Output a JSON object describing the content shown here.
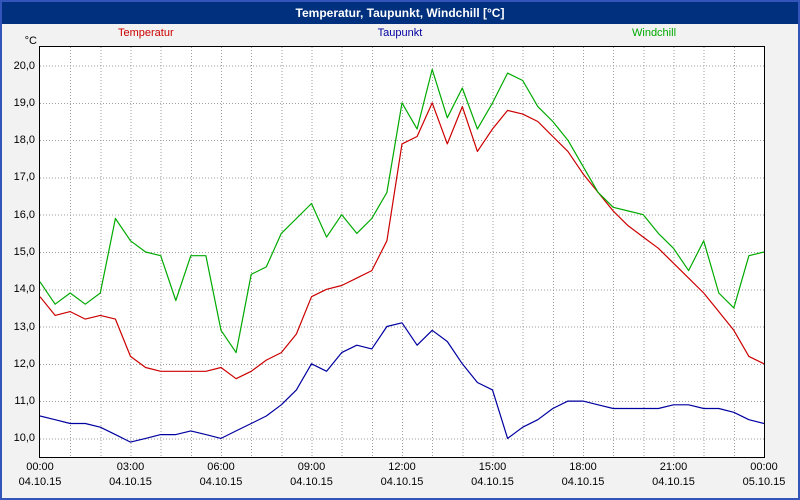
{
  "window": {
    "title": "Temperatur, Taupunkt, Windchill [°C]"
  },
  "chart_data": {
    "type": "line",
    "title": "Temperatur, Taupunkt, Windchill [°C]",
    "xlabel": "",
    "ylabel": "°C",
    "ylim": [
      9.5,
      20.5
    ],
    "grid": "dotted, vertical every hour, horizontal every 1.0 °C",
    "legend_position": "top",
    "x_hours": [
      0,
      0.5,
      1,
      1.5,
      2,
      2.5,
      3,
      3.5,
      4,
      4.5,
      5,
      5.5,
      6,
      6.5,
      7,
      7.5,
      8,
      8.5,
      9,
      9.5,
      10,
      10.5,
      11,
      11.5,
      12,
      12.5,
      13,
      13.5,
      14,
      14.5,
      15,
      15.5,
      16,
      16.5,
      17,
      17.5,
      18,
      18.5,
      19,
      19.5,
      20,
      20.5,
      21,
      21.5,
      22,
      22.5,
      23,
      23.5,
      24
    ],
    "series": [
      {
        "name": "Temperatur",
        "color": "#cc0000",
        "values": [
          13.8,
          13.3,
          13.4,
          13.2,
          13.3,
          13.2,
          12.2,
          11.9,
          11.8,
          11.8,
          11.8,
          11.8,
          11.9,
          11.6,
          11.8,
          12.1,
          12.3,
          12.8,
          13.8,
          14.0,
          14.1,
          14.3,
          14.5,
          15.3,
          17.9,
          18.1,
          19.0,
          17.9,
          18.9,
          17.7,
          18.3,
          18.8,
          18.7,
          18.5,
          18.1,
          17.7,
          17.1,
          16.6,
          16.1,
          15.7,
          15.4,
          15.1,
          14.7,
          14.3,
          13.9,
          13.4,
          12.9,
          12.2,
          12.0
        ]
      },
      {
        "name": "Taupunkt",
        "color": "#0000a0",
        "values": [
          10.6,
          10.5,
          10.4,
          10.4,
          10.3,
          10.1,
          9.9,
          10.0,
          10.1,
          10.1,
          10.2,
          10.1,
          10.0,
          10.2,
          10.4,
          10.6,
          10.9,
          11.3,
          12.0,
          11.8,
          12.3,
          12.5,
          12.4,
          13.0,
          13.1,
          12.5,
          12.9,
          12.6,
          12.0,
          11.5,
          11.3,
          10.0,
          10.3,
          10.5,
          10.8,
          11.0,
          11.0,
          10.9,
          10.8,
          10.8,
          10.8,
          10.8,
          10.9,
          10.9,
          10.8,
          10.8,
          10.7,
          10.5,
          10.4
        ]
      },
      {
        "name": "Windchill",
        "color": "#00aa00",
        "values": [
          14.2,
          13.6,
          13.9,
          13.6,
          13.9,
          15.9,
          15.3,
          15.0,
          14.9,
          13.7,
          14.9,
          14.9,
          12.9,
          12.3,
          14.4,
          14.6,
          15.5,
          15.9,
          16.3,
          15.4,
          16.0,
          15.5,
          15.9,
          16.6,
          19.0,
          18.3,
          19.9,
          18.6,
          19.4,
          18.3,
          19.0,
          19.8,
          19.6,
          18.9,
          18.5,
          18.0,
          17.3,
          16.6,
          16.2,
          16.1,
          16.0,
          15.5,
          15.1,
          14.5,
          15.3,
          13.9,
          13.5,
          14.9,
          15.0
        ]
      }
    ],
    "yticks": [
      {
        "v": 20,
        "label": "20,0"
      },
      {
        "v": 19,
        "label": "19,0"
      },
      {
        "v": 18,
        "label": "18,0"
      },
      {
        "v": 17,
        "label": "17,0"
      },
      {
        "v": 16,
        "label": "16,0"
      },
      {
        "v": 15,
        "label": "15,0"
      },
      {
        "v": 14,
        "label": "14,0"
      },
      {
        "v": 13,
        "label": "13,0"
      },
      {
        "v": 12,
        "label": "12,0"
      },
      {
        "v": 11,
        "label": "11,0"
      },
      {
        "v": 10,
        "label": "10,0"
      }
    ],
    "xticks": [
      {
        "h": 0,
        "time": "00:00",
        "date": "04.10.15"
      },
      {
        "h": 3,
        "time": "03:00",
        "date": "04.10.15"
      },
      {
        "h": 6,
        "time": "06:00",
        "date": "04.10.15"
      },
      {
        "h": 9,
        "time": "09:00",
        "date": "04.10.15"
      },
      {
        "h": 12,
        "time": "12:00",
        "date": "04.10.15"
      },
      {
        "h": 15,
        "time": "15:00",
        "date": "04.10.15"
      },
      {
        "h": 18,
        "time": "18:00",
        "date": "04.10.15"
      },
      {
        "h": 21,
        "time": "21:00",
        "date": "04.10.15"
      },
      {
        "h": 24,
        "time": "00:00",
        "date": "05.10.15"
      }
    ],
    "colors": {
      "frame_border": "#3354b8",
      "titlebar_bg": "#00307e",
      "titlebar_text": "#ffffff",
      "plot_bg": "#ffffff",
      "grid": "#9e9e9e"
    }
  }
}
